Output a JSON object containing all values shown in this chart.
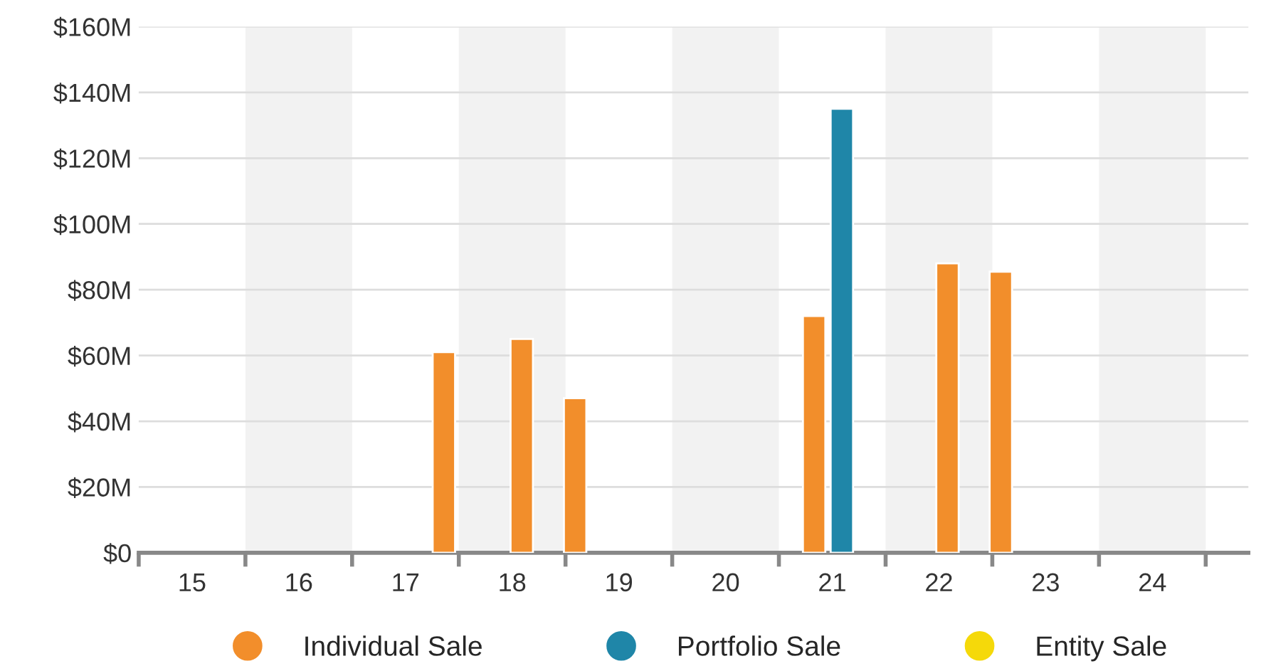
{
  "chart_data": {
    "type": "bar",
    "series": [
      {
        "name": "Individual Sale",
        "color": "#f28e2b",
        "x": [
          17.36,
          18.09,
          18.59,
          20.83,
          22.08,
          22.58
        ],
        "values": [
          61,
          65,
          47,
          72,
          88,
          85.5
        ]
      },
      {
        "name": "Portfolio Sale",
        "color": "#1f86a8",
        "x": [
          21.09
        ],
        "values": [
          135
        ]
      },
      {
        "name": "Entity Sale",
        "color": "#f5d90a"
      }
    ],
    "xlim": [
      14.5,
      24.9
    ],
    "xticks": [
      {
        "value": 14.5,
        "label": null
      },
      {
        "value": 15.5,
        "label": null
      },
      {
        "value": 16.5,
        "label": null
      },
      {
        "value": 17.5,
        "label": null
      },
      {
        "value": 18.5,
        "label": null
      },
      {
        "value": 19.5,
        "label": null
      },
      {
        "value": 20.5,
        "label": null
      },
      {
        "value": 21.5,
        "label": null
      },
      {
        "value": 22.5,
        "label": null
      },
      {
        "value": 23.5,
        "label": null
      },
      {
        "value": 24.5,
        "label": null
      },
      15,
      16,
      17,
      18,
      19,
      20,
      21,
      22,
      23,
      24
    ],
    "ylim": [
      0,
      160
    ],
    "yticks": [
      {
        "value": 0,
        "label": "$0"
      },
      {
        "value": 20,
        "label": "$20M"
      },
      {
        "value": 40,
        "label": "$40M"
      },
      {
        "value": 60,
        "label": "$60M"
      },
      {
        "value": 80,
        "label": "$80M"
      },
      {
        "value": 100,
        "label": "$100M"
      },
      {
        "value": 120,
        "label": "$120M"
      },
      {
        "value": 140,
        "label": "$140M"
      },
      {
        "value": 160,
        "label": "$160M"
      }
    ],
    "bands": [
      {
        "axis": "x",
        "from": 15.5,
        "to": 16.5,
        "color": "#f2f2f2"
      },
      {
        "axis": "x",
        "from": 17.5,
        "to": 18.5,
        "color": "#f2f2f2"
      },
      {
        "axis": "x",
        "from": 19.5,
        "to": 20.5,
        "color": "#f2f2f2"
      },
      {
        "axis": "x",
        "from": 21.5,
        "to": 22.5,
        "color": "#f2f2f2"
      },
      {
        "axis": "x",
        "from": 23.5,
        "to": 24.5,
        "color": "#f2f2f2"
      }
    ],
    "grid": "y",
    "legend": "bottom"
  }
}
